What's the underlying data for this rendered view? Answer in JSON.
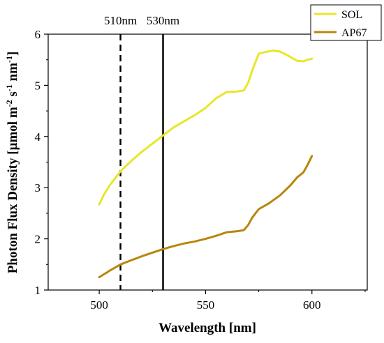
{
  "chart_data": {
    "type": "line",
    "xlabel": "Wavelength [nm]",
    "ylabel_parts": [
      "Photon Flux Density [µmol m",
      "-2",
      " s",
      "-1",
      " nm",
      "-1",
      "]"
    ],
    "xlim": [
      476,
      626
    ],
    "ylim": [
      1,
      6
    ],
    "xticks": [
      500,
      550,
      600
    ],
    "yticks": [
      1,
      2,
      3,
      4,
      5,
      6
    ],
    "grid": false,
    "legend_position": "top-right",
    "reference_lines": [
      {
        "x": 510,
        "label": "510nm",
        "style": "dashed"
      },
      {
        "x": 530,
        "label": "530nm",
        "style": "solid"
      }
    ],
    "series": [
      {
        "name": "SOL",
        "color": "#E8E62A",
        "x": [
          500,
          502,
          505,
          510,
          515,
          520,
          525,
          530,
          535,
          540,
          545,
          550,
          555,
          560,
          565,
          568,
          570,
          572,
          575,
          578,
          582,
          585,
          588,
          590,
          593,
          596,
          598,
          600
        ],
        "y": [
          2.67,
          2.85,
          3.05,
          3.32,
          3.52,
          3.7,
          3.86,
          4.02,
          4.18,
          4.3,
          4.42,
          4.56,
          4.75,
          4.87,
          4.88,
          4.9,
          5.05,
          5.3,
          5.62,
          5.65,
          5.68,
          5.66,
          5.6,
          5.55,
          5.48,
          5.47,
          5.5,
          5.52
        ]
      },
      {
        "name": "AP67",
        "color": "#B8860B",
        "x": [
          500,
          505,
          510,
          515,
          520,
          525,
          530,
          535,
          540,
          545,
          550,
          555,
          560,
          565,
          568,
          570,
          572,
          575,
          580,
          585,
          590,
          593,
          596,
          598,
          600
        ],
        "y": [
          1.25,
          1.38,
          1.5,
          1.58,
          1.66,
          1.73,
          1.8,
          1.86,
          1.91,
          1.95,
          2.0,
          2.06,
          2.13,
          2.15,
          2.17,
          2.27,
          2.42,
          2.58,
          2.7,
          2.85,
          3.05,
          3.2,
          3.3,
          3.45,
          3.62
        ]
      }
    ]
  }
}
